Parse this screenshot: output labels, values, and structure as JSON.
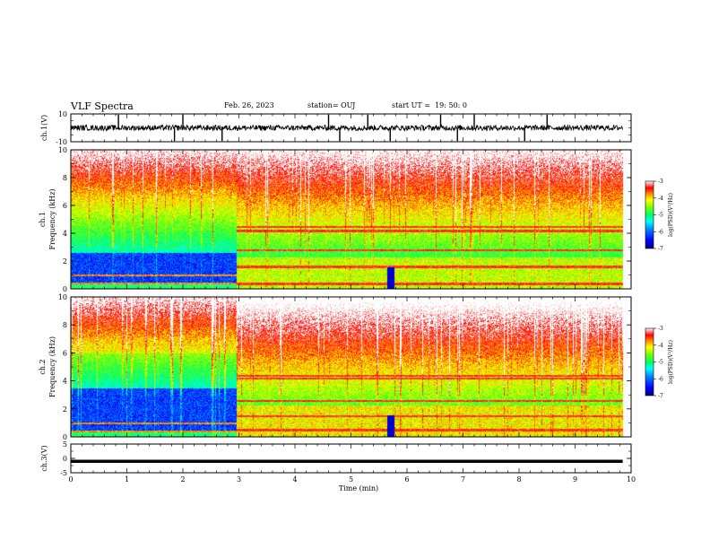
{
  "header": {
    "title": "VLF Spectra",
    "date": "Feb. 26, 2023",
    "station": "station= OUJ",
    "start": "start UT =  19: 50: 0"
  },
  "colors": {
    "spectrum_scale": [
      "#00007f",
      "#0000ff",
      "#0080ff",
      "#00ffff",
      "#00ff80",
      "#80ff00",
      "#ffff00",
      "#ff8000",
      "#ff0000",
      "#ff80a0",
      "#ffffff"
    ]
  },
  "chart_data": [
    {
      "type": "line",
      "panel": "ch1_waveform",
      "ylabel": "ch.1(V)",
      "ylim": [
        -10,
        10
      ],
      "yticks": [
        "10",
        "-10"
      ],
      "xlim": [
        0,
        10
      ],
      "baseline_v": 0,
      "noise_amplitude_v": 2,
      "spike_times_min": [
        0.85,
        1.85,
        2.0,
        2.7,
        4.6,
        4.8,
        5.3,
        5.7,
        6.6,
        6.9,
        7.2,
        8.1,
        8.5
      ]
    },
    {
      "type": "heatmap",
      "panel": "ch1_spectrogram",
      "ylabel": "ch.1\nFrequency (kHz)",
      "xlim": [
        0,
        10
      ],
      "data_end_min": 9.85,
      "ylim_khz": [
        0,
        10
      ],
      "yticks": [
        "0",
        "2",
        "4",
        "6",
        "8",
        "10"
      ],
      "colorbar": {
        "label": "log(PSD)(V²/Hz)",
        "ticks": [
          "-3",
          "-4",
          "-5",
          "-6",
          "-7"
        ],
        "range": [
          -7,
          -3
        ]
      },
      "transition_min": 2.95,
      "gap_min": 5.7,
      "quiet_band_khz_before": [
        0,
        2.6
      ],
      "bands_khz_after": [
        0.4,
        1.6,
        2.8,
        4.2,
        4.5
      ]
    },
    {
      "type": "heatmap",
      "panel": "ch2_spectrogram",
      "ylabel": "ch.2\nFrequency (kHz)",
      "xlim": [
        0,
        10
      ],
      "data_end_min": 9.85,
      "ylim_khz": [
        0,
        10
      ],
      "yticks": [
        "0",
        "2",
        "4",
        "6",
        "8",
        "10"
      ],
      "colorbar": {
        "label": "log(PSD)(V²/Hz)",
        "ticks": [
          "-3",
          "-4",
          "-5",
          "-6",
          "-7"
        ],
        "range": [
          -7,
          -3
        ]
      },
      "transition_min": 2.95,
      "gap_min": 5.7,
      "quiet_band_khz_before": [
        0,
        3.5
      ],
      "bands_khz_after": [
        0.5,
        1.5,
        2.6,
        4.2,
        4.4
      ]
    },
    {
      "type": "line",
      "panel": "ch3_waveform",
      "ylabel": "ch.3(V)",
      "ylim": [
        -5,
        5
      ],
      "yticks": [
        "5",
        "0",
        "-5"
      ],
      "xlim": [
        0,
        10
      ],
      "constant_value_v": -1
    }
  ],
  "xaxis": {
    "label": "Time (min)",
    "ticks": [
      "0",
      "1",
      "2",
      "3",
      "4",
      "5",
      "6",
      "7",
      "8",
      "9",
      "10"
    ]
  }
}
